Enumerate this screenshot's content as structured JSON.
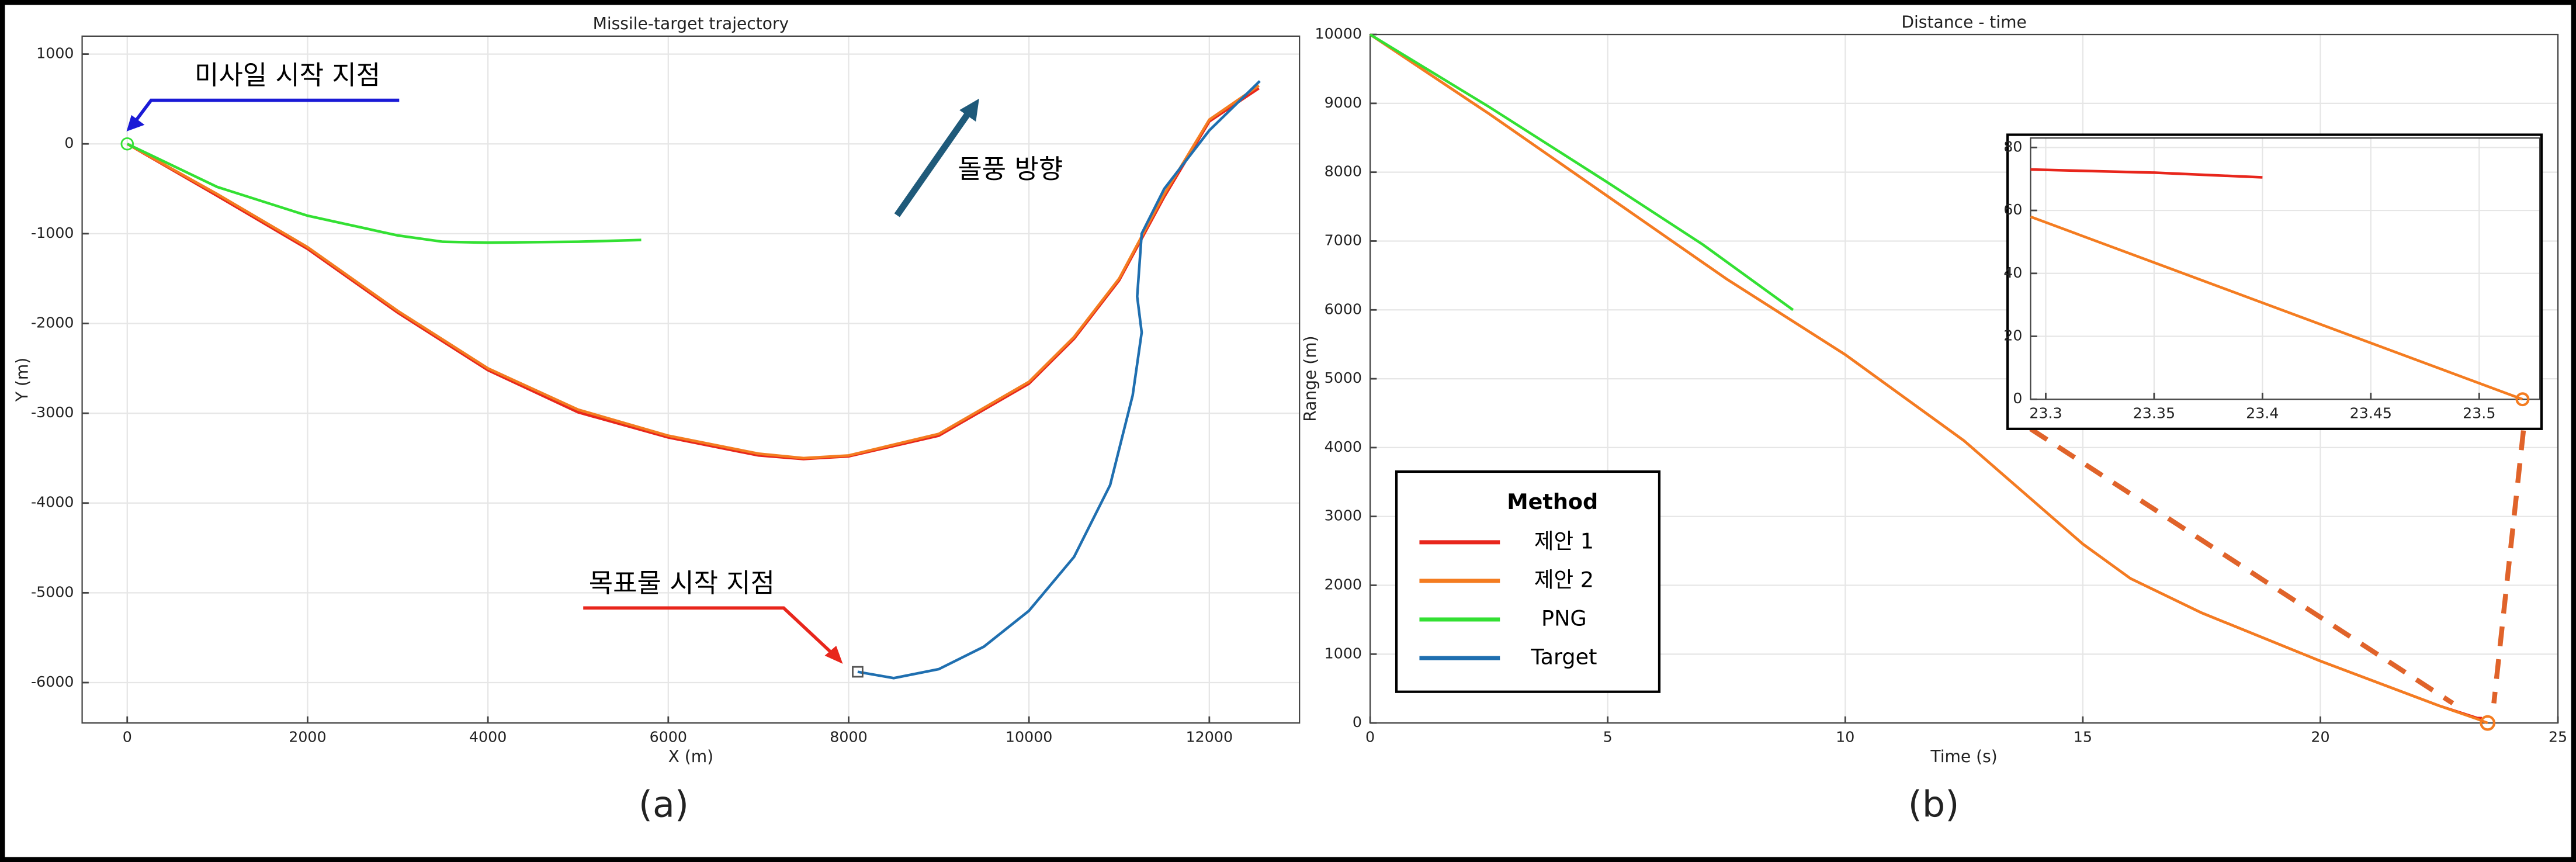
{
  "chart_data": [
    {
      "type": "line",
      "title": "Missile-target trajectory",
      "xlabel": "X (m)",
      "ylabel": "Y (m)",
      "caption": "(a)",
      "annotations": [
        "미사일 시작 지점",
        "돌풍 방향",
        "목표물 시작 지점"
      ],
      "xlim": [
        -500,
        13000
      ],
      "ylim": [
        -6450,
        1200
      ],
      "xticks": [
        0,
        2000,
        4000,
        6000,
        8000,
        10000,
        12000
      ],
      "yticks": [
        -6000,
        -5000,
        -4000,
        -3000,
        -2000,
        -1000,
        0,
        1000
      ],
      "grid": true,
      "series": [
        {
          "name": "제안 1",
          "color": "#e8261c",
          "x": [
            0,
            1000,
            2000,
            3000,
            4000,
            5000,
            6000,
            7000,
            7500,
            8000,
            9000,
            10000,
            10500,
            11000,
            11500,
            12000,
            12550
          ],
          "values": [
            0,
            -580,
            -1170,
            -1880,
            -2520,
            -2990,
            -3270,
            -3470,
            -3510,
            -3480,
            -3250,
            -2670,
            -2170,
            -1520,
            -590,
            250,
            620
          ]
        },
        {
          "name": "제안 2",
          "color": "#f47c20",
          "x": [
            0,
            1000,
            2000,
            3000,
            4000,
            5000,
            6000,
            7000,
            7500,
            8000,
            9000,
            10000,
            10500,
            11000,
            11500,
            12000,
            12550
          ],
          "values": [
            0,
            -560,
            -1150,
            -1860,
            -2500,
            -2960,
            -3250,
            -3450,
            -3500,
            -3470,
            -3230,
            -2650,
            -2150,
            -1500,
            -560,
            270,
            650
          ]
        },
        {
          "name": "PNG",
          "color": "#33e033",
          "x": [
            0,
            1000,
            2000,
            3000,
            3500,
            4000,
            5000,
            5700
          ],
          "values": [
            0,
            -480,
            -800,
            -1020,
            -1090,
            -1100,
            -1090,
            -1070
          ]
        },
        {
          "name": "Target",
          "color": "#1f6fb0",
          "x": [
            8100,
            8500,
            9000,
            9500,
            10000,
            10500,
            10900,
            11150,
            11250,
            11200,
            11250,
            11500,
            12000,
            12560
          ],
          "values": [
            -5880,
            -5950,
            -5850,
            -5600,
            -5200,
            -4600,
            -3800,
            -2800,
            -2100,
            -1700,
            -1000,
            -500,
            150,
            700
          ]
        }
      ]
    },
    {
      "type": "line",
      "title": "Distance - time",
      "xlabel": "Time (s)",
      "ylabel": "Range (m)",
      "caption": "(b)",
      "legend_title": "Method",
      "legend": "lower left",
      "xlim": [
        0,
        25
      ],
      "ylim": [
        0,
        10000
      ],
      "xticks": [
        0,
        5,
        10,
        15,
        20,
        25
      ],
      "yticks": [
        0,
        1000,
        2000,
        3000,
        4000,
        5000,
        6000,
        7000,
        8000,
        9000,
        10000
      ],
      "grid": true,
      "series": [
        {
          "color": "#e8261c",
          "x": [
            0,
            2.5,
            5,
            7.5,
            10,
            12.5,
            15,
            16,
            17.5,
            20,
            22.5,
            23.3,
            23.4
          ],
          "values": [
            10000,
            8850,
            7650,
            6450,
            5350,
            4100,
            2600,
            2100,
            1600,
            900,
            250,
            72,
            70
          ]
        },
        {
          "color": "#f47c20",
          "x": [
            0,
            2.5,
            5,
            7.5,
            10,
            12.5,
            15,
            16,
            17.5,
            20,
            22.5,
            23.3,
            23.52
          ],
          "values": [
            10000,
            8850,
            7650,
            6450,
            5350,
            4100,
            2600,
            2100,
            1600,
            900,
            250,
            58,
            0
          ]
        },
        {
          "color": "#33e033",
          "x": [
            0,
            2.5,
            5,
            7,
            8.9
          ],
          "values": [
            10000,
            8950,
            7850,
            6950,
            6000
          ]
        }
      ]
    },
    {
      "type": "line",
      "xlim": [
        23.293,
        23.528
      ],
      "ylim": [
        0,
        83
      ],
      "xticks": [
        23.3,
        23.35,
        23.4,
        23.45,
        23.5
      ],
      "yticks": [
        0,
        20,
        40,
        60,
        80
      ],
      "grid": true,
      "series": [
        {
          "color": "#e8261c",
          "x": [
            23.293,
            23.35,
            23.4
          ],
          "values": [
            73,
            72,
            70.5
          ]
        },
        {
          "color": "#f47c20",
          "x": [
            23.293,
            23.52
          ],
          "values": [
            58,
            0
          ]
        }
      ]
    }
  ]
}
